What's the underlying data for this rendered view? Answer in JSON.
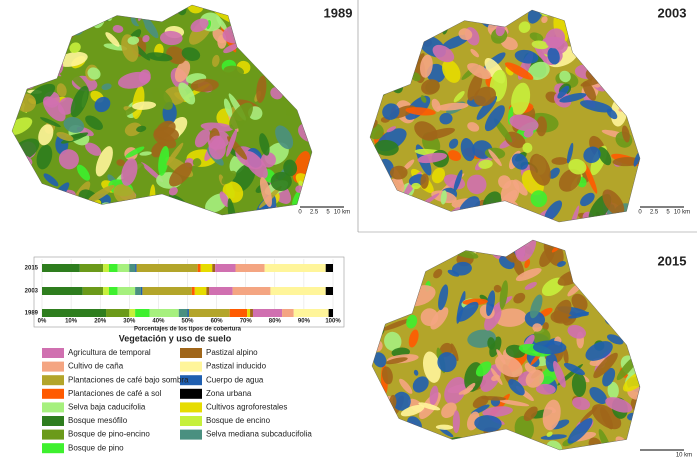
{
  "maps": [
    {
      "year": "1989",
      "scale_labels": [
        "0",
        "2.5",
        "5",
        "10 km"
      ]
    },
    {
      "year": "2003",
      "scale_labels": [
        "0",
        "2.5",
        "5",
        "10 km"
      ]
    },
    {
      "year": "2015",
      "scale_labels": [
        "10 km"
      ]
    }
  ],
  "chart_data": {
    "type": "stacked_barh",
    "xlabel": "Porcentajes de los tipos de cobertura",
    "legend_title": "Vegetación y uso de suelo",
    "categories": [
      "2015",
      "2003",
      "1989"
    ],
    "xlim": [
      0,
      100
    ],
    "xticks": [
      {
        "value": 0,
        "label": "0%"
      },
      {
        "value": 10,
        "label": "10%"
      },
      {
        "value": 20,
        "label": "20%"
      },
      {
        "value": 30,
        "label": "30%"
      },
      {
        "value": 40,
        "label": "40%"
      },
      {
        "value": 50,
        "label": "50%"
      },
      {
        "value": 60,
        "label": "60%"
      },
      {
        "value": 70,
        "label": "70%"
      },
      {
        "value": 80,
        "label": "80%"
      },
      {
        "value": 90,
        "label": "90%"
      },
      {
        "value": 100,
        "label": "100%"
      }
    ],
    "series": [
      {
        "name": "Bosque mesófilo",
        "color": "#2e7d1e",
        "values": [
          13,
          14,
          22
        ]
      },
      {
        "name": "Bosque de pino-encino",
        "color": "#6b9a1a",
        "values": [
          8,
          7,
          8
        ]
      },
      {
        "name": "Bosque de encino",
        "color": "#c6f03c",
        "values": [
          2,
          2,
          2
        ]
      },
      {
        "name": "Bosque de pino",
        "color": "#3ef02e",
        "values": [
          3,
          3,
          5
        ]
      },
      {
        "name": "Selva baja caducifolia",
        "color": "#a6f07e",
        "values": [
          4,
          6,
          10
        ]
      },
      {
        "name": "Selva mediana subcaducifolia",
        "color": "#4a9080",
        "values": [
          2,
          2,
          3
        ]
      },
      {
        "name": "Cuerpo de agua",
        "color": "#1f5fb0",
        "values": [
          0.5,
          0.5,
          0.5
        ]
      },
      {
        "name": "Plantaciones de café bajo sombra",
        "color": "#b3a52a",
        "values": [
          21,
          17,
          14
        ]
      },
      {
        "name": "Plantaciones de café a sol",
        "color": "#ff5a00",
        "values": [
          1,
          1,
          6
        ]
      },
      {
        "name": "Cultivos agroforestales",
        "color": "#e6dc00",
        "values": [
          4,
          4,
          1
        ]
      },
      {
        "name": "Pastizal alpino",
        "color": "#a0661a",
        "values": [
          1,
          1,
          1
        ]
      },
      {
        "name": "Agricultura de temporal",
        "color": "#d070b0",
        "values": [
          7,
          8,
          10
        ]
      },
      {
        "name": "Cultivo de caña",
        "color": "#f4a582",
        "values": [
          10,
          13,
          4
        ]
      },
      {
        "name": "Pastizal inducido",
        "color": "#fff59a",
        "values": [
          21,
          19,
          12
        ]
      },
      {
        "name": "Zona urbana",
        "color": "#000000",
        "values": [
          2.5,
          2.5,
          1.5
        ]
      }
    ]
  }
}
